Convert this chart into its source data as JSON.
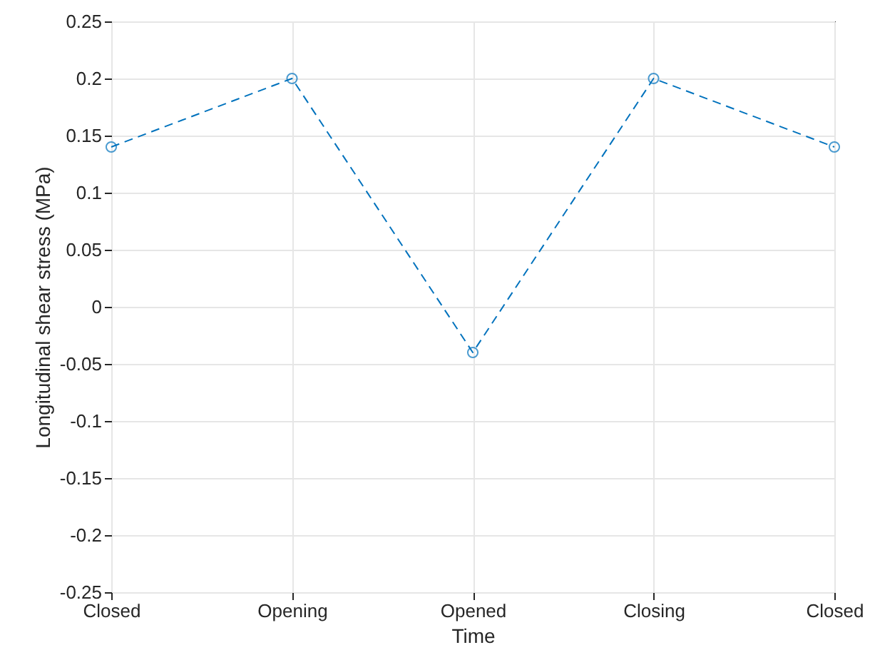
{
  "chart_data": {
    "type": "line",
    "xlabel": "Time",
    "ylabel": "Longitudinal shear stress (MPa)",
    "categories": [
      "Closed",
      "Opening",
      "Opened",
      "Closing",
      "Closed"
    ],
    "series": [
      {
        "color": "#0072bd",
        "values": [
          0.14,
          0.2,
          -0.04,
          0.2,
          0.14
        ]
      }
    ],
    "ylim": [
      -0.25,
      0.25
    ],
    "yticks": [
      -0.25,
      -0.2,
      -0.15,
      -0.1,
      -0.05,
      0,
      0.05,
      0.1,
      0.15,
      0.2,
      0.25
    ],
    "grid": true,
    "marker": "circle",
    "line_style": "dashed"
  }
}
